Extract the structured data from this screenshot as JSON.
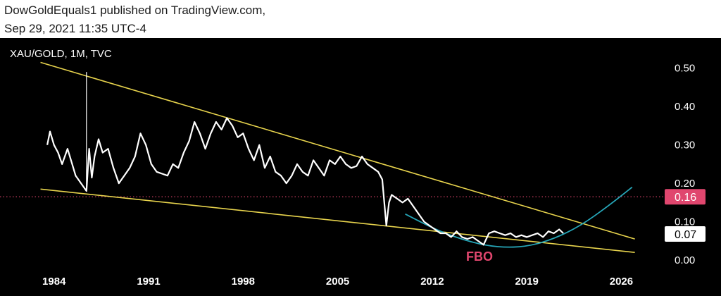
{
  "header": {
    "line1": "DowGoldEquals1 published on TradingView.com,",
    "line2": "Sep 29, 2021 11:35 UTC-4"
  },
  "chart_data": {
    "type": "line",
    "symbol_label": "XAU/GOLD, 1M, TVC",
    "x_ticks": [
      "1984",
      "1991",
      "1998",
      "2005",
      "2012",
      "2019",
      "2026"
    ],
    "y_ticks": [
      "0.50",
      "0.40",
      "0.30",
      "0.20",
      "0.10",
      "0.00"
    ],
    "xlim": [
      1980,
      2029
    ],
    "ylim": [
      -0.02,
      0.56
    ],
    "grid": false,
    "price_labels": [
      {
        "text": "0.16",
        "value": 0.165,
        "color": "#e0466e",
        "text_color": "#ffffff"
      },
      {
        "text": "0.07",
        "value": 0.068,
        "color": "#ffffff",
        "text_color": "#000000"
      }
    ],
    "annotations": [
      {
        "text": "FBO",
        "x": 2015.5,
        "y": 0.0,
        "color": "#e0466e"
      }
    ],
    "colors": {
      "price": "#ffffff",
      "trendline": "#e8d44d",
      "arc": "#26a6b8",
      "dotted": "#e0466e"
    },
    "trendlines": [
      {
        "name": "upper",
        "points": [
          [
            1983.0,
            0.515
          ],
          [
            2027.0,
            0.055
          ]
        ]
      },
      {
        "name": "lower",
        "points": [
          [
            1983.0,
            0.185
          ],
          [
            2027.0,
            0.02
          ]
        ]
      }
    ],
    "arc": {
      "points": [
        [
          2010.0,
          0.12
        ],
        [
          2012.5,
          0.075
        ],
        [
          2015.0,
          0.045
        ],
        [
          2017.0,
          0.033
        ],
        [
          2019.0,
          0.035
        ],
        [
          2021.0,
          0.055
        ],
        [
          2023.0,
          0.09
        ],
        [
          2025.0,
          0.14
        ],
        [
          2026.8,
          0.19
        ]
      ]
    },
    "series": [
      {
        "x": [
          1983.5,
          1983.7,
          1984.0,
          1984.3,
          1984.6,
          1985.0,
          1985.3,
          1985.6,
          1986.0,
          1986.4,
          1986.6,
          1986.8,
          1987.0,
          1987.3,
          1987.6,
          1988.0,
          1988.4,
          1988.8,
          1989.2,
          1989.6,
          1990.0,
          1990.4,
          1990.8,
          1991.2,
          1991.6,
          1992.0,
          1992.4,
          1992.8,
          1993.2,
          1993.6,
          1994.0,
          1994.4,
          1994.8,
          1995.2,
          1995.6,
          1996.0,
          1996.4,
          1996.8,
          1997.2,
          1997.6,
          1998.0,
          1998.4,
          1998.8,
          1999.2,
          1999.6,
          2000.0,
          2000.4,
          2000.8,
          2001.2,
          2001.6,
          2002.0,
          2002.4,
          2002.8,
          2003.2,
          2003.6,
          2004.0,
          2004.4,
          2004.8,
          2005.2,
          2005.6,
          2006.0,
          2006.4,
          2006.8,
          2007.2,
          2007.6,
          2008.0,
          2008.3,
          2008.6,
          2008.8,
          2009.0,
          2009.4,
          2009.8,
          2010.2,
          2010.6,
          2011.0,
          2011.4,
          2011.8,
          2012.2,
          2012.6,
          2013.0,
          2013.4,
          2013.8,
          2014.2,
          2014.6,
          2015.0,
          2015.4,
          2015.8,
          2016.2,
          2016.6,
          2017.0,
          2017.4,
          2017.8,
          2018.2,
          2018.6,
          2019.0,
          2019.4,
          2019.8,
          2020.2,
          2020.6,
          2021.0,
          2021.4,
          2021.7
        ],
        "y": [
          0.3,
          0.335,
          0.3,
          0.28,
          0.25,
          0.29,
          0.255,
          0.22,
          0.2,
          0.18,
          0.29,
          0.215,
          0.27,
          0.315,
          0.28,
          0.29,
          0.24,
          0.2,
          0.22,
          0.24,
          0.27,
          0.33,
          0.3,
          0.25,
          0.23,
          0.225,
          0.22,
          0.25,
          0.24,
          0.28,
          0.31,
          0.36,
          0.33,
          0.29,
          0.33,
          0.36,
          0.34,
          0.37,
          0.35,
          0.32,
          0.33,
          0.29,
          0.26,
          0.3,
          0.24,
          0.27,
          0.23,
          0.22,
          0.2,
          0.22,
          0.25,
          0.23,
          0.22,
          0.26,
          0.24,
          0.22,
          0.26,
          0.25,
          0.27,
          0.25,
          0.24,
          0.245,
          0.27,
          0.25,
          0.24,
          0.23,
          0.21,
          0.09,
          0.15,
          0.17,
          0.16,
          0.15,
          0.16,
          0.14,
          0.12,
          0.1,
          0.09,
          0.08,
          0.07,
          0.07,
          0.06,
          0.075,
          0.06,
          0.055,
          0.06,
          0.05,
          0.04,
          0.07,
          0.075,
          0.07,
          0.065,
          0.07,
          0.06,
          0.065,
          0.06,
          0.065,
          0.07,
          0.06,
          0.075,
          0.07,
          0.08,
          0.07
        ]
      },
      {
        "name": "spike",
        "x": [
          1986.4,
          1986.4
        ],
        "y": [
          0.18,
          0.49
        ]
      }
    ]
  }
}
